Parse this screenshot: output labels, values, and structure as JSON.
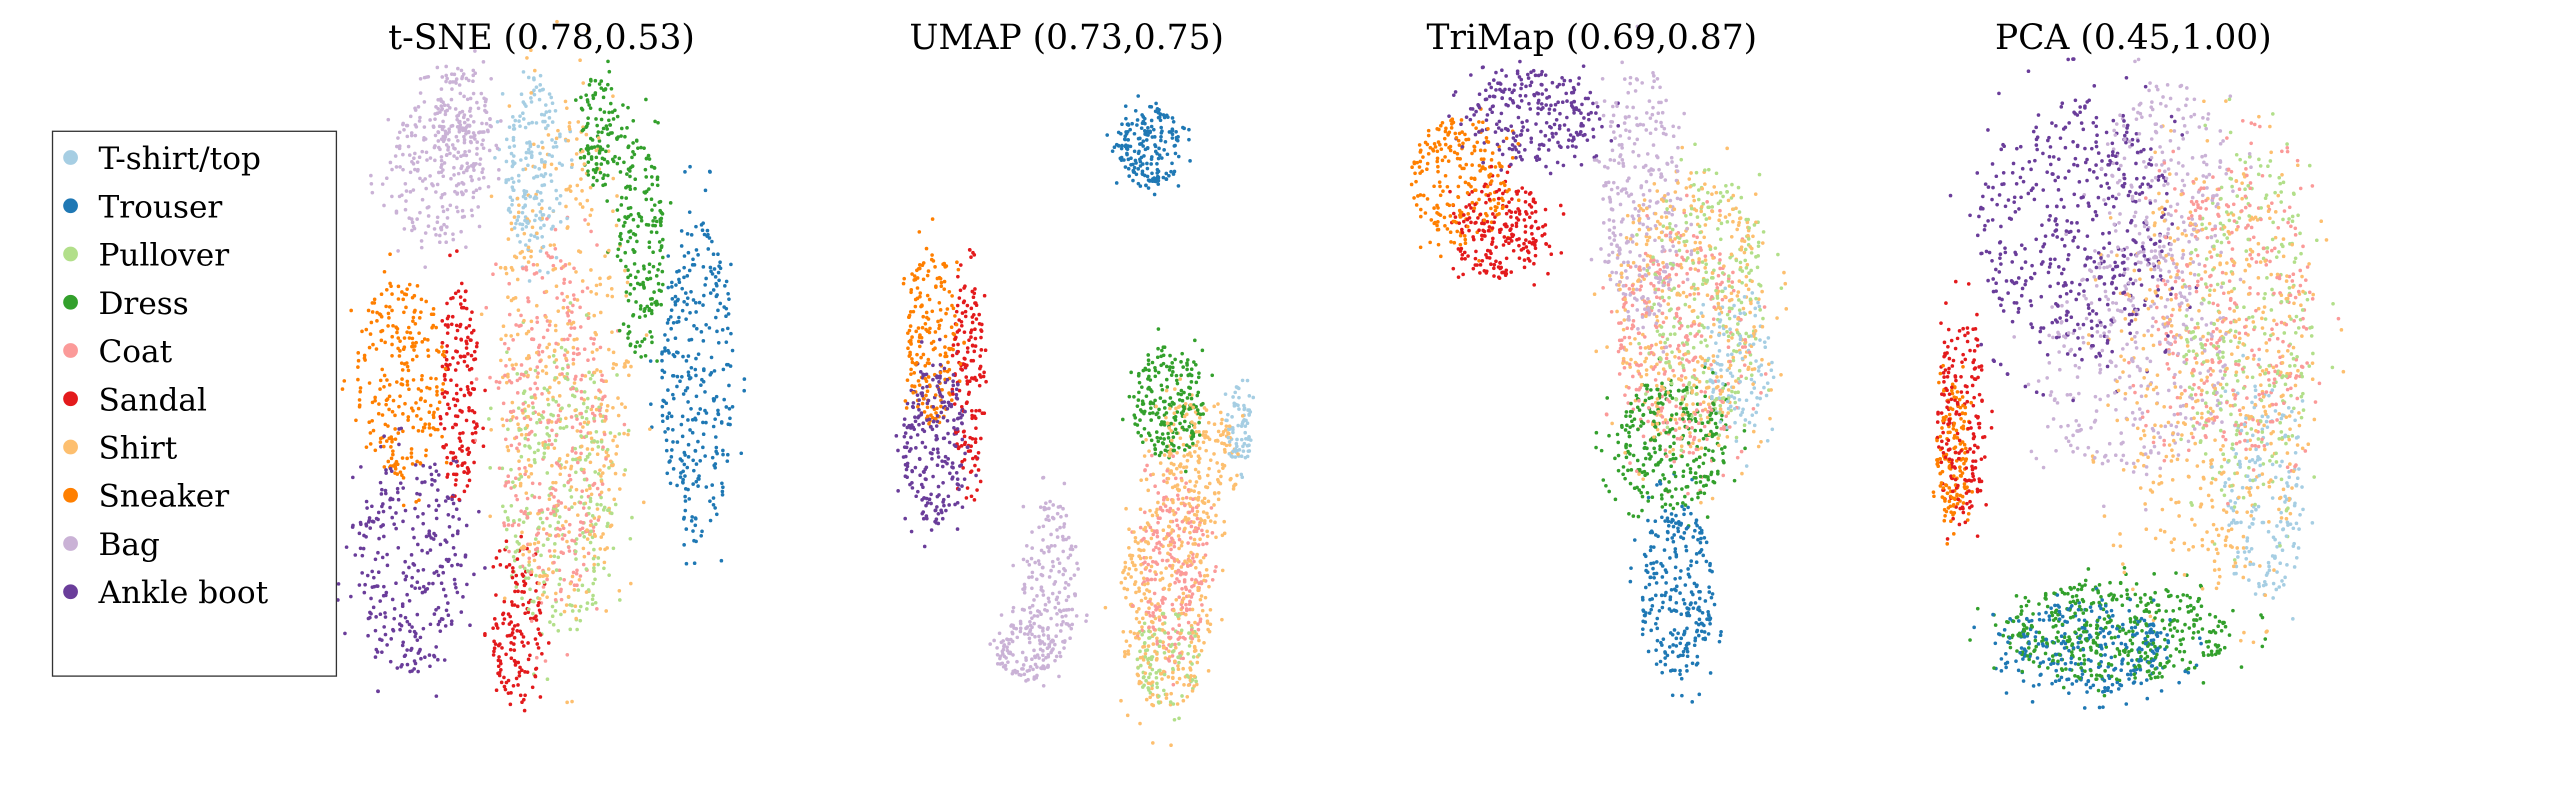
{
  "chart_data": {
    "type": "scatter",
    "legend_position": "left",
    "grid": false,
    "axes_visible": false,
    "categories": [
      {
        "name": "T-shirt/top",
        "color": "#a6cee3"
      },
      {
        "name": "Trouser",
        "color": "#1f78b4"
      },
      {
        "name": "Pullover",
        "color": "#b2df8a"
      },
      {
        "name": "Dress",
        "color": "#33a02c"
      },
      {
        "name": "Coat",
        "color": "#fb9a99"
      },
      {
        "name": "Sandal",
        "color": "#e31a1c"
      },
      {
        "name": "Shirt",
        "color": "#fdbf6f"
      },
      {
        "name": "Sneaker",
        "color": "#ff7f00"
      },
      {
        "name": "Bag",
        "color": "#cab2d6"
      },
      {
        "name": "Ankle boot",
        "color": "#6a3d9a"
      }
    ],
    "panels": [
      {
        "title": "t-SNE (0.78,0.53)",
        "method": "t-SNE",
        "scores": [
          0.78,
          0.53
        ]
      },
      {
        "title": "UMAP (0.73,0.75)",
        "method": "UMAP",
        "scores": [
          0.73,
          0.75
        ]
      },
      {
        "title": "TriMap (0.69,0.87)",
        "method": "TriMap",
        "scores": [
          0.69,
          0.87
        ]
      },
      {
        "title": "PCA (0.45,1.00)",
        "method": "PCA",
        "scores": [
          0.45,
          1.0
        ]
      }
    ]
  }
}
